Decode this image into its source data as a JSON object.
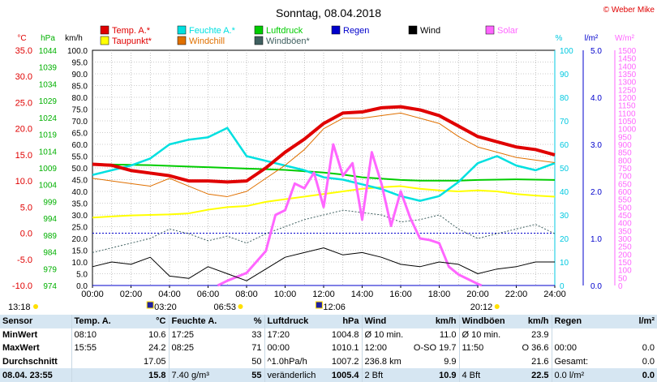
{
  "chart_data": {
    "type": "line",
    "title": "Sonntag, 08.04.2018",
    "copyright": "© Weber Mike",
    "x_ticks": [
      "00:00",
      "02:00",
      "04:00",
      "06:00",
      "08:00",
      "10:00",
      "12:00",
      "14:00",
      "16:00",
      "18:00",
      "20:00",
      "22:00",
      "24:00"
    ],
    "x_range_hours": [
      0,
      24
    ],
    "axes": [
      {
        "id": "temp",
        "unit": "°C",
        "color": "#e00000",
        "range": [
          -10,
          35
        ],
        "ticks": [
          "35.0",
          "30.0",
          "25.0",
          "20.0",
          "15.0",
          "10.0",
          "5.0",
          "0.0",
          "-5.0",
          "-10.0"
        ]
      },
      {
        "id": "press",
        "unit": "hPa",
        "color": "#00b000",
        "range": [
          974,
          1044
        ],
        "ticks": [
          "1044",
          "1039",
          "1034",
          "1029",
          "1024",
          "1019",
          "1014",
          "1009",
          "1004",
          "999",
          "994",
          "989",
          "984",
          "979",
          "974"
        ]
      },
      {
        "id": "wind",
        "unit": "km/h",
        "color": "#000000",
        "range": [
          0,
          100
        ],
        "ticks": [
          "100.0",
          "95.0",
          "90.0",
          "85.0",
          "80.0",
          "75.0",
          "70.0",
          "65.0",
          "60.0",
          "55.0",
          "50.0",
          "45.0",
          "40.0",
          "35.0",
          "30.0",
          "25.0",
          "20.0",
          "15.0",
          "10.0",
          "5.0",
          "0.0"
        ]
      },
      {
        "id": "hum",
        "unit": "%",
        "color": "#00c8e0",
        "range": [
          0,
          100
        ],
        "ticks": [
          "100",
          "90",
          "80",
          "70",
          "60",
          "50",
          "40",
          "30",
          "20",
          "10",
          "0"
        ]
      },
      {
        "id": "rain",
        "unit": "l/m²",
        "color": "#0000cc",
        "range": [
          0,
          5
        ],
        "ticks": [
          "5.0",
          "4.0",
          "3.0",
          "2.0",
          "1.0",
          "0.0"
        ]
      },
      {
        "id": "solar",
        "unit": "W/m²",
        "color": "#ff66ff",
        "range": [
          0,
          1500
        ],
        "ticks": [
          "1500",
          "1450",
          "1400",
          "1350",
          "1300",
          "1250",
          "1200",
          "1150",
          "1100",
          "1050",
          "1000",
          "950",
          "900",
          "850",
          "800",
          "750",
          "700",
          "650",
          "600",
          "550",
          "500",
          "450",
          "400",
          "350",
          "300",
          "250",
          "200",
          "150",
          "100",
          "50",
          "0"
        ]
      }
    ],
    "legend": [
      {
        "label": "Temp. A.*",
        "color": "#e00000"
      },
      {
        "label": "Feuchte A.*",
        "color": "#00e0e0"
      },
      {
        "label": "Luftdruck",
        "color": "#00cc00"
      },
      {
        "label": "Regen",
        "color": "#0000cc"
      },
      {
        "label": "Wind",
        "color": "#000000"
      },
      {
        "label": "Solar",
        "color": "#ff66ff"
      },
      {
        "label": "Taupunkt*",
        "color": "#ffff00"
      },
      {
        "label": "Windchill",
        "color": "#e07000"
      },
      {
        "label": "Windböen*",
        "color": "#406060"
      }
    ],
    "series": [
      {
        "name": "Temp. A.*",
        "axis": "temp",
        "color": "#e00000",
        "x": [
          0,
          1,
          2,
          3,
          4,
          5,
          6,
          7,
          8,
          9,
          10,
          11,
          12,
          13,
          14,
          15,
          16,
          17,
          18,
          19,
          20,
          21,
          22,
          23,
          24
        ],
        "values": [
          13.2,
          13.0,
          12.0,
          11.5,
          11.0,
          10.0,
          10.0,
          9.8,
          10.0,
          12.5,
          15.5,
          18.0,
          21.0,
          23.0,
          23.2,
          24.0,
          24.2,
          23.6,
          22.5,
          20.5,
          18.5,
          17.5,
          16.5,
          16.0,
          15.0
        ]
      },
      {
        "name": "Windchill",
        "axis": "temp",
        "color": "#e07000",
        "x": [
          0,
          1,
          2,
          3,
          4,
          5,
          6,
          7,
          8,
          9,
          10,
          11,
          12,
          13,
          14,
          15,
          16,
          17,
          18,
          19,
          20,
          21,
          22,
          23,
          24
        ],
        "values": [
          10.5,
          10.0,
          9.5,
          9.0,
          10.5,
          9.0,
          7.5,
          7.0,
          8.0,
          10.5,
          13.0,
          16.0,
          20.0,
          22.0,
          22.0,
          22.5,
          23.0,
          22.0,
          21.0,
          18.5,
          16.5,
          15.5,
          14.5,
          14.0,
          13.5
        ]
      },
      {
        "name": "Taupunkt*",
        "axis": "temp",
        "color": "#ffff00",
        "x": [
          0,
          1,
          2,
          3,
          4,
          5,
          6,
          7,
          8,
          9,
          10,
          11,
          12,
          13,
          14,
          15,
          16,
          17,
          18,
          19,
          20,
          21,
          22,
          23,
          24
        ],
        "values": [
          3.0,
          3.2,
          3.4,
          3.5,
          3.6,
          3.8,
          4.5,
          5.0,
          5.2,
          6.0,
          6.5,
          7.0,
          7.5,
          8.0,
          8.5,
          8.8,
          9.0,
          8.5,
          8.2,
          8.0,
          8.2,
          8.0,
          7.5,
          7.2,
          7.0
        ]
      },
      {
        "name": "Feuchte A.*",
        "axis": "hum",
        "color": "#00e0e0",
        "x": [
          0,
          1,
          2,
          3,
          4,
          5,
          6,
          7,
          8,
          9,
          10,
          11,
          12,
          13,
          14,
          15,
          16,
          17,
          18,
          19,
          20,
          21,
          22,
          23,
          24
        ],
        "values": [
          47,
          49,
          51,
          54,
          60,
          62,
          63,
          67,
          55,
          53,
          51,
          49,
          46,
          45,
          43,
          41,
          38,
          36,
          38,
          44,
          52,
          55,
          51,
          49,
          52
        ]
      },
      {
        "name": "Luftdruck",
        "axis": "press",
        "color": "#00cc00",
        "x": [
          0,
          1,
          2,
          3,
          4,
          5,
          6,
          7,
          8,
          9,
          10,
          11,
          12,
          13,
          14,
          15,
          16,
          17,
          18,
          19,
          20,
          21,
          22,
          23,
          24
        ],
        "values": [
          1010.1,
          1010.0,
          1009.9,
          1009.8,
          1009.6,
          1009.4,
          1009.2,
          1009.0,
          1008.8,
          1008.6,
          1008.4,
          1008.0,
          1007.6,
          1007.0,
          1006.2,
          1005.8,
          1005.4,
          1005.2,
          1005.2,
          1005.2,
          1005.4,
          1005.5,
          1005.6,
          1005.5,
          1005.4
        ]
      },
      {
        "name": "Wind",
        "axis": "wind",
        "color": "#000000",
        "x": [
          0,
          1,
          2,
          3,
          4,
          5,
          6,
          7,
          8,
          9,
          10,
          11,
          12,
          13,
          14,
          15,
          16,
          17,
          18,
          19,
          20,
          21,
          22,
          23,
          24
        ],
        "values": [
          8,
          10,
          9,
          12,
          4,
          3,
          8,
          5,
          2,
          7,
          12,
          14,
          16,
          13,
          14,
          12,
          9,
          8,
          10,
          9,
          5,
          7,
          8,
          10,
          10
        ]
      },
      {
        "name": "Windböen*",
        "axis": "wind",
        "color": "#406060",
        "x": [
          0,
          1,
          2,
          3,
          4,
          5,
          6,
          7,
          8,
          9,
          10,
          11,
          12,
          13,
          14,
          15,
          16,
          17,
          18,
          19,
          20,
          21,
          22,
          23,
          24
        ],
        "values": [
          14,
          16,
          18,
          20,
          24,
          22,
          19,
          21,
          18,
          22,
          25,
          28,
          30,
          32,
          31,
          30,
          27,
          28,
          30,
          24,
          20,
          22,
          24,
          26,
          22
        ]
      },
      {
        "name": "Solar",
        "axis": "solar",
        "color": "#ff66ff",
        "x": [
          6.5,
          7,
          8,
          9,
          9.5,
          10,
          10.5,
          11,
          11.5,
          12,
          12.5,
          13,
          13.5,
          14,
          14.5,
          15,
          15.5,
          16,
          16.5,
          17,
          17.5,
          18,
          18.5,
          19,
          19.5,
          20,
          20.2
        ],
        "values": [
          0,
          30,
          80,
          220,
          450,
          480,
          650,
          620,
          720,
          500,
          900,
          700,
          780,
          420,
          850,
          650,
          380,
          600,
          430,
          300,
          290,
          270,
          120,
          70,
          40,
          10,
          0
        ]
      },
      {
        "name": "Regen",
        "axis": "rain",
        "color": "#0000cc",
        "x": [
          0,
          24
        ],
        "values": [
          0,
          0
        ]
      }
    ],
    "reference_line_zero_celsius": true,
    "sun_events": {
      "dawn": "03:20",
      "sunrise": "06:53",
      "noon": "12:06",
      "sunset": "20:12"
    },
    "timestamp_label": "13:18"
  },
  "stats": {
    "headers": [
      "Sensor",
      "Temp. A.",
      "°C",
      "Feuchte A.",
      "%",
      "Luftdruck",
      "hPa",
      "Wind",
      "km/h",
      "Windböen",
      "km/h",
      "Regen",
      "l/m²"
    ],
    "rows": [
      {
        "label": "MinWert",
        "cells": [
          "08:10",
          "10.6",
          "17:25",
          "33",
          "17:20",
          "1004.8",
          "Ø 10 min.",
          "11.0",
          "Ø 10 min.",
          "23.9",
          "",
          ""
        ]
      },
      {
        "label": "MaxWert",
        "cells": [
          "15:55",
          "24.2",
          "08:25",
          "71",
          "00:00",
          "1010.1",
          "12:00",
          "O-SO 19.7",
          "11:50",
          "O 36.6",
          "00:00",
          "0.0"
        ]
      },
      {
        "label": "Durchschnitt",
        "cells": [
          "",
          "17.05",
          "",
          "50",
          "^1.0hPa/h",
          "1007.2",
          "236.8 km",
          "9.9",
          "",
          "21.6",
          "Gesamt:",
          "0.0"
        ]
      },
      {
        "label": "08.04. 23:55",
        "cells": [
          "",
          "15.8",
          "7.40 g/m³",
          "55",
          "veränderlich",
          "1005.4",
          "2 Bft",
          "10.9",
          "4 Bft",
          "22.5",
          "0.0 l/m²",
          "0.0"
        ]
      }
    ]
  }
}
